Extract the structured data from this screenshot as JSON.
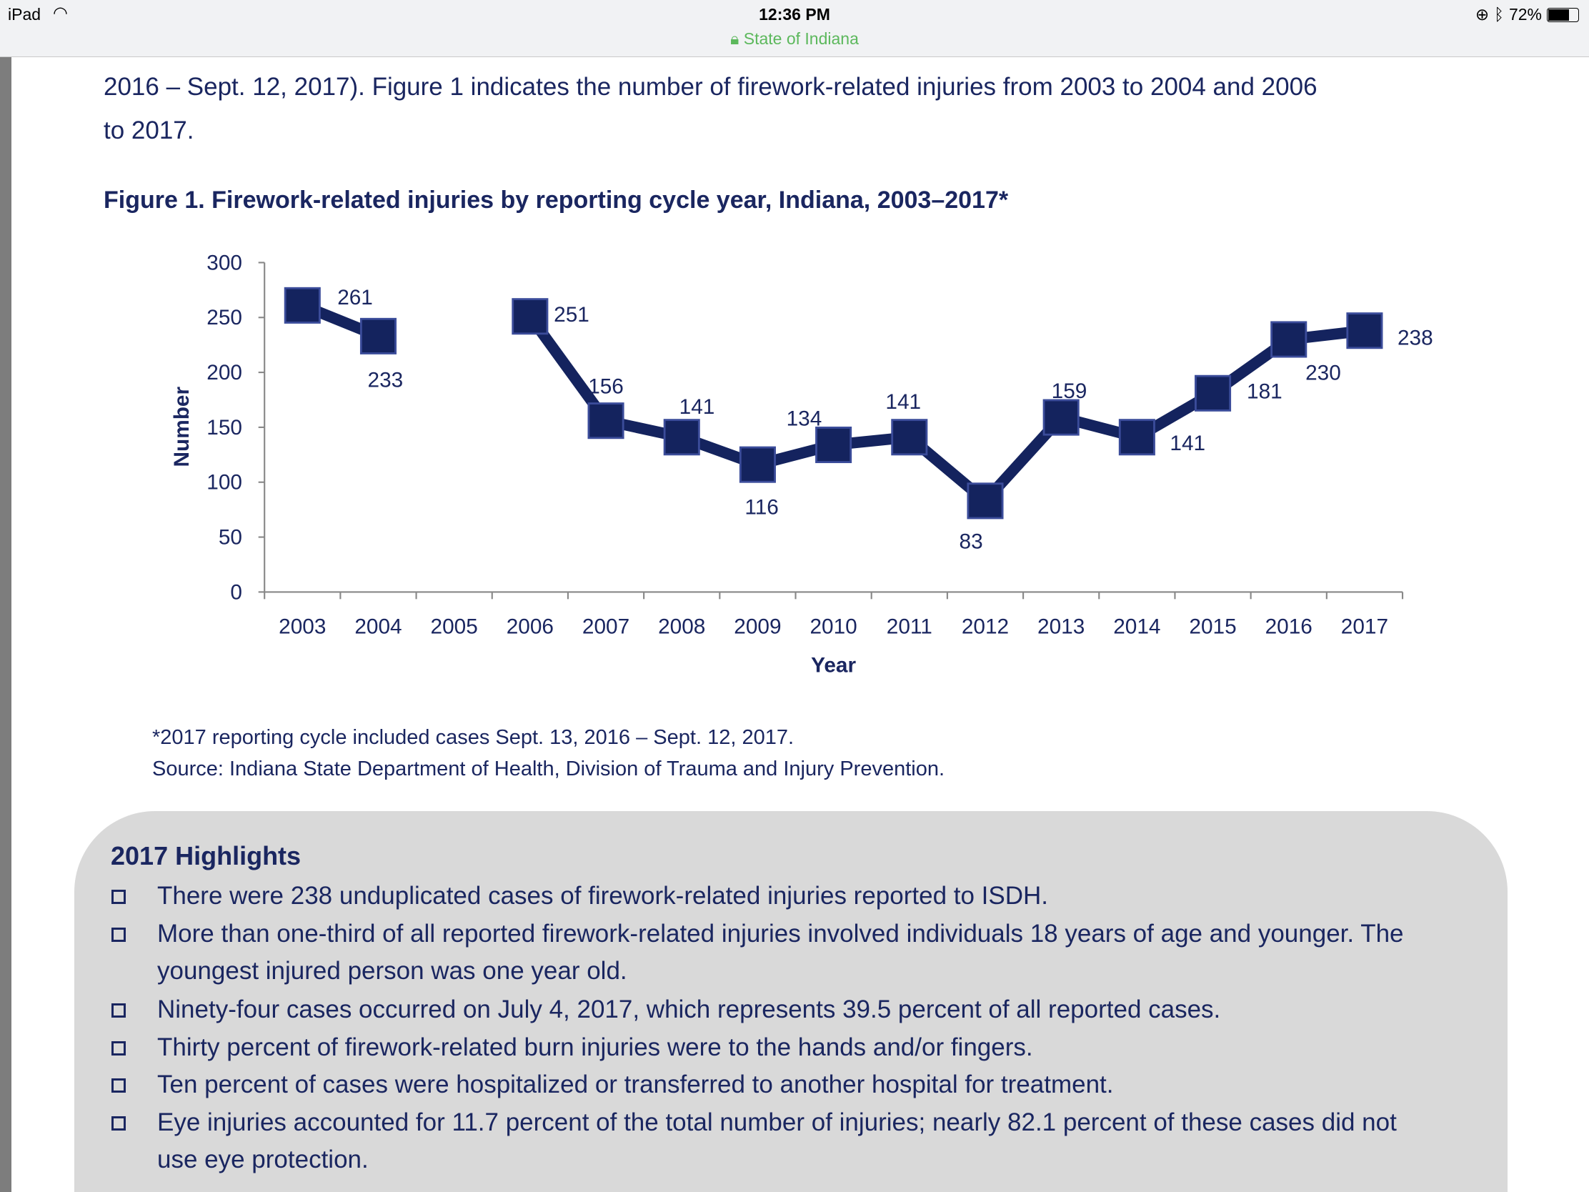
{
  "statusbar": {
    "carrier": "iPad",
    "time": "12:36 PM",
    "url": "State of Indiana",
    "battery": "72%",
    "battery_level": 0.72
  },
  "intro": {
    "line1": "2016 – Sept. 12, 2017). Figure 1 indicates the number of firework-related injuries from 2003 to 2004 and 2006",
    "line2": "to 2017."
  },
  "figure": {
    "title": "Figure 1. Firework-related injuries by reporting cycle year, Indiana, 2003–2017*",
    "footnote": "*2017 reporting cycle included cases Sept. 13, 2016 – Sept. 12, 2017.",
    "source": "Source: Indiana State Department of Health, Division of Trauma and Injury Prevention."
  },
  "chart_data": {
    "type": "line",
    "xlabel": "Year",
    "ylabel": "Number",
    "ylim": [
      0,
      300
    ],
    "yticks": [
      0,
      50,
      100,
      150,
      200,
      250,
      300
    ],
    "categories": [
      "2003",
      "2004",
      "2005",
      "2006",
      "2007",
      "2008",
      "2009",
      "2010",
      "2011",
      "2012",
      "2013",
      "2014",
      "2015",
      "2016",
      "2017"
    ],
    "values": [
      261,
      233,
      null,
      251,
      156,
      141,
      116,
      134,
      141,
      83,
      159,
      141,
      181,
      230,
      238
    ],
    "color": "#14235e",
    "marker": "square",
    "grid": false,
    "legend": "none"
  },
  "highlights": {
    "title": "2017 Highlights",
    "items": [
      "There were 238 unduplicated cases of firework-related injuries reported to ISDH.",
      "More than one-third of all reported firework-related injuries involved individuals 18 years of age and younger. The youngest injured person was one year old.",
      "Ninety-four cases occurred on July 4, 2017, which represents 39.5 percent of all reported cases.",
      "Thirty percent of firework-related burn injuries were to the hands and/or fingers.",
      "Ten percent of cases were hospitalized or transferred to another hospital for treatment.",
      "Eye injuries accounted for 11.7 percent of the total number of injuries; nearly 82.1 percent of these cases did not use eye protection."
    ]
  }
}
